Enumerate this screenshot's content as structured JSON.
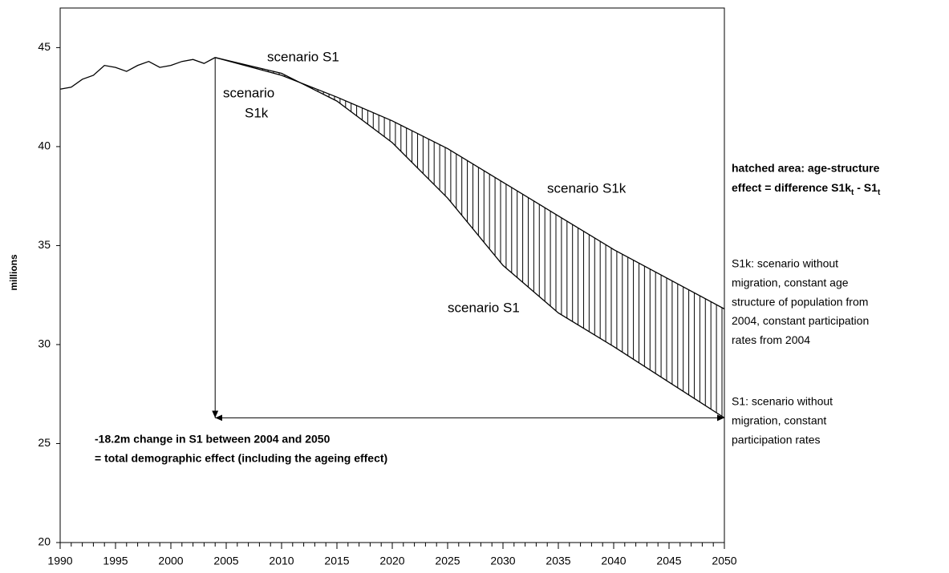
{
  "chart_data": {
    "type": "line",
    "y_label": "millions",
    "xlim": [
      1990,
      2050
    ],
    "ylim": [
      20,
      47
    ],
    "xticks": [
      1990,
      1995,
      2000,
      2005,
      2010,
      2015,
      2020,
      2025,
      2030,
      2035,
      2040,
      2045,
      2050
    ],
    "xminorticks": [
      1990,
      1991,
      1992,
      1993,
      1994,
      1995,
      1996,
      1997,
      1998,
      1999,
      2000,
      2001,
      2002,
      2003,
      2004,
      2005,
      2006,
      2007,
      2008,
      2009,
      2010,
      2011,
      2012,
      2013,
      2014,
      2015,
      2016,
      2017,
      2018,
      2019,
      2020,
      2021,
      2022,
      2023,
      2024,
      2025,
      2026,
      2027,
      2028,
      2029,
      2030,
      2031,
      2032,
      2033,
      2034,
      2035,
      2036,
      2037,
      2038,
      2039,
      2040,
      2041,
      2042,
      2043,
      2044,
      2045,
      2046,
      2047,
      2048,
      2049,
      2050
    ],
    "yticks": [
      20,
      25,
      30,
      35,
      40,
      45
    ],
    "grid": false,
    "hatch_between": [
      1,
      2
    ],
    "series": [
      {
        "color": "#000000",
        "x": [
          1990,
          1991,
          1992,
          1993,
          1994,
          1995,
          1996,
          1997,
          1998,
          1999,
          2000,
          2001,
          2002,
          2003,
          2004
        ],
        "values": [
          42.9,
          43.0,
          43.4,
          43.6,
          44.1,
          44.0,
          43.8,
          44.1,
          44.3,
          44.0,
          44.1,
          44.3,
          44.4,
          44.2,
          44.5
        ]
      },
      {
        "color": "#000000",
        "x": [
          2004,
          2010,
          2015,
          2020,
          2025,
          2030,
          2035,
          2040,
          2045,
          2050
        ],
        "values": [
          44.5,
          43.6,
          42.5,
          41.3,
          39.9,
          38.2,
          36.5,
          34.8,
          33.3,
          31.8
        ]
      },
      {
        "color": "#000000",
        "x": [
          2004,
          2010,
          2015,
          2020,
          2025,
          2030,
          2035,
          2040,
          2045,
          2050
        ],
        "values": [
          44.5,
          43.7,
          42.3,
          40.2,
          37.4,
          34.0,
          31.6,
          29.9,
          28.1,
          26.3
        ]
      }
    ],
    "annotations": {
      "s1_top": "scenario S1",
      "s1k_top": [
        "scenario",
        "S1k"
      ],
      "s1k_mid": "scenario S1k",
      "s1_mid": "scenario S1",
      "hatch_note": [
        "hatched area: age-structure",
        "effect = difference S1k",
        "t",
        " - S1",
        "t"
      ],
      "s1k_note": [
        "S1k: scenario without",
        "migration, constant age",
        "structure of population from",
        "2004, constant participation",
        "rates from 2004"
      ],
      "s1_note": [
        "S1: scenario without",
        "migration, constant",
        "participation rates"
      ],
      "total_note": [
        "-18.2m change in S1 between 2004 and 2050",
        "= total demographic effect (including the ageing effect)"
      ]
    }
  }
}
